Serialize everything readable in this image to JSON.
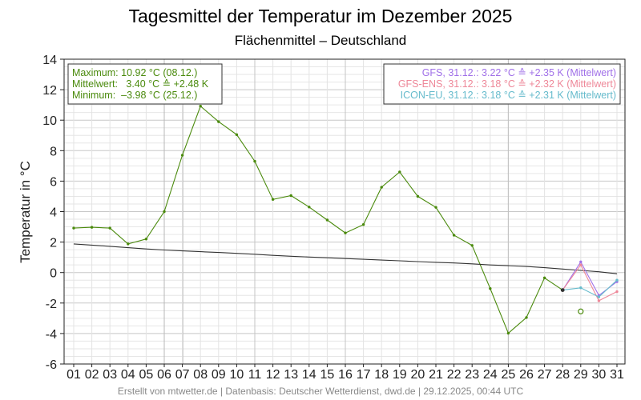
{
  "chart_data": {
    "type": "line",
    "title": "Tagesmittel der Temperatur im Dezember 2025",
    "subtitle": "Flächenmittel – Deutschland",
    "ylabel": "Temperatur in °C",
    "ylim": [
      -6,
      14
    ],
    "yticks": [
      "-6",
      "-4",
      "-2",
      "0",
      "2",
      "4",
      "6",
      "8",
      "10",
      "12",
      "14"
    ],
    "ytick_values": [
      -6,
      -4,
      -2,
      0,
      2,
      4,
      6,
      8,
      10,
      12,
      14
    ],
    "categories": [
      "01",
      "02",
      "03",
      "04",
      "05",
      "06",
      "07",
      "08",
      "09",
      "10",
      "11",
      "12",
      "13",
      "14",
      "15",
      "16",
      "17",
      "18",
      "19",
      "20",
      "21",
      "22",
      "23",
      "24",
      "25",
      "26",
      "27",
      "28",
      "29",
      "30",
      "31"
    ],
    "grid": true,
    "series": [
      {
        "key": "observed",
        "color": "#4a8a0c",
        "values": [
          2.92,
          2.97,
          2.92,
          1.88,
          2.2,
          4.0,
          7.7,
          10.92,
          9.9,
          9.05,
          7.3,
          4.8,
          5.05,
          4.3,
          3.45,
          2.6,
          3.15,
          5.6,
          6.6,
          5.0,
          4.28,
          2.45,
          1.78,
          -1.05,
          -3.98,
          -2.95,
          -0.35,
          -1.15,
          null,
          null,
          null
        ]
      },
      {
        "key": "climate",
        "color": "#333333",
        "values": [
          1.88,
          1.8,
          1.72,
          1.63,
          1.55,
          1.48,
          1.42,
          1.37,
          1.32,
          1.26,
          1.2,
          1.13,
          1.07,
          1.02,
          0.97,
          0.92,
          0.87,
          0.82,
          0.77,
          0.72,
          0.67,
          0.63,
          0.57,
          0.5,
          0.45,
          0.4,
          0.32,
          0.23,
          0.14,
          0.05,
          -0.08
        ]
      },
      {
        "name": "GFS",
        "color": "#a070e8",
        "values": [
          null,
          null,
          null,
          null,
          null,
          null,
          null,
          null,
          null,
          null,
          null,
          null,
          null,
          null,
          null,
          null,
          null,
          null,
          null,
          null,
          null,
          null,
          null,
          null,
          null,
          null,
          null,
          -1.15,
          0.7,
          -1.5,
          -0.6
        ]
      },
      {
        "name": "GFS-ENS",
        "color": "#ee8899",
        "values": [
          null,
          null,
          null,
          null,
          null,
          null,
          null,
          null,
          null,
          null,
          null,
          null,
          null,
          null,
          null,
          null,
          null,
          null,
          null,
          null,
          null,
          null,
          null,
          null,
          null,
          null,
          null,
          -1.15,
          0.5,
          -1.85,
          -1.25
        ]
      },
      {
        "name": "ICON-EU",
        "color": "#66bbcc",
        "values": [
          null,
          null,
          null,
          null,
          null,
          null,
          null,
          null,
          null,
          null,
          null,
          null,
          null,
          null,
          null,
          null,
          null,
          null,
          null,
          null,
          null,
          null,
          null,
          null,
          null,
          null,
          null,
          -1.15,
          -1.0,
          -1.6,
          -0.5
        ]
      }
    ],
    "extra_points": [
      {
        "x_index": 28,
        "value": -2.55,
        "color": "#4a8a0c",
        "style": "hollow"
      }
    ],
    "stats_box": {
      "lines": [
        "Maximum: 10.92 °C (08.12.)",
        "Mittelwert:   3.40 °C ≙ +2.48 K",
        "Minimum:  –3.98 °C (25.12.)"
      ],
      "color": "#4a8a0c"
    },
    "legend": {
      "position": "top-right",
      "entries": [
        {
          "text": "GFS, 31.12.: 3.22 °C ≙ +2.35 K (Mittelwert)",
          "color": "#a070e8"
        },
        {
          "text": "GFS-ENS, 31.12.: 3.18 °C ≙ +2.32 K (Mittelwert)",
          "color": "#ee8899"
        },
        {
          "text": "ICON-EU, 31.12.: 3.18 °C ≙ +2.31 K (Mittelwert)",
          "color": "#66bbcc"
        }
      ]
    }
  },
  "footer": "Erstellt von mtwetter.de | Datenbasis: Deutscher Wetterdienst, dwd.de | 29.12.2025, 00:44 UTC"
}
